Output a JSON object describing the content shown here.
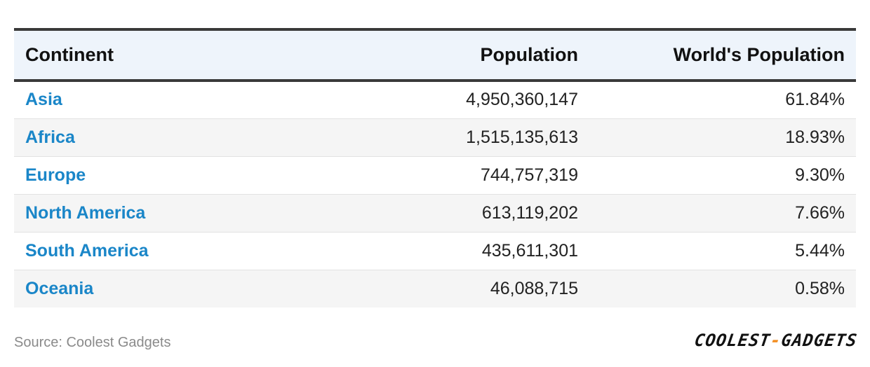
{
  "chart_data": {
    "type": "table",
    "columns": [
      "Continent",
      "Population",
      "World's Population"
    ],
    "rows": [
      {
        "continent": "Asia",
        "population": "4,950,360,147",
        "share": "61.84%"
      },
      {
        "continent": "Africa",
        "population": "1,515,135,613",
        "share": "18.93%"
      },
      {
        "continent": "Europe",
        "population": "744,757,319",
        "share": "9.30%"
      },
      {
        "continent": "North America",
        "population": "613,119,202",
        "share": "7.66%"
      },
      {
        "continent": "South America",
        "population": "435,611,301",
        "share": "5.44%"
      },
      {
        "continent": "Oceania",
        "population": "46,088,715",
        "share": "0.58%"
      }
    ],
    "source": "Source: Coolest Gadgets"
  },
  "logo": {
    "part1": "COOLEST",
    "separator": "-",
    "part2": "GADGETS"
  },
  "colors": {
    "link": "#1a86c8",
    "header_bg": "#eef4fb",
    "accent": "#f28c1e"
  }
}
